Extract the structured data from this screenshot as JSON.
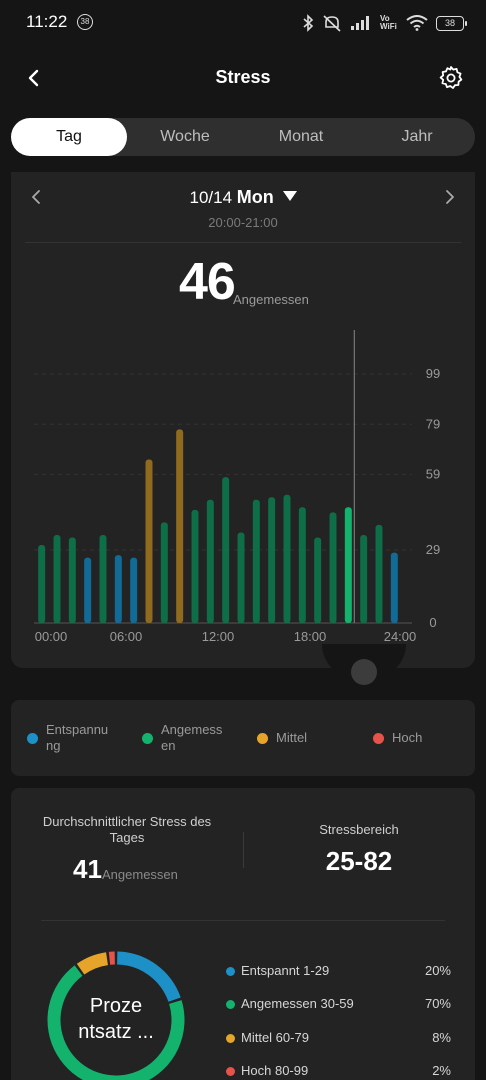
{
  "status": {
    "time": "11:22",
    "notification_badge": "38",
    "battery": "38",
    "network": "Vo WiFi"
  },
  "header": {
    "title": "Stress"
  },
  "tabs": [
    {
      "label": "Tag",
      "active": true
    },
    {
      "label": "Woche",
      "active": false
    },
    {
      "label": "Monat",
      "active": false
    },
    {
      "label": "Jahr",
      "active": false
    }
  ],
  "date": {
    "date": "10/14",
    "day": "Mon",
    "time_range": "20:00-21:00"
  },
  "current": {
    "value": "46",
    "label": "Angemessen"
  },
  "colors": {
    "relaxed": "#1e90c8",
    "normal": "#13b36e",
    "medium": "#e6a52a",
    "high": "#e5534b"
  },
  "chart_data": {
    "type": "bar",
    "xlabel": "",
    "ylabel": "",
    "x_tick_labels": [
      "00:00",
      "06:00",
      "12:00",
      "18:00",
      "24:00"
    ],
    "y_ticks": [
      0,
      29,
      59,
      79,
      99
    ],
    "ylim": [
      0,
      99
    ],
    "grid": true,
    "selected_index": 20,
    "bars": [
      {
        "time": "00:30",
        "value": 31,
        "level": "normal"
      },
      {
        "time": "01:30",
        "value": 35,
        "level": "normal"
      },
      {
        "time": "02:30",
        "value": 34,
        "level": "normal"
      },
      {
        "time": "03:30",
        "value": 26,
        "level": "relaxed"
      },
      {
        "time": "04:30",
        "value": 35,
        "level": "normal"
      },
      {
        "time": "05:30",
        "value": 27,
        "level": "relaxed"
      },
      {
        "time": "06:30",
        "value": 26,
        "level": "relaxed"
      },
      {
        "time": "07:30",
        "value": 65,
        "level": "medium"
      },
      {
        "time": "08:30",
        "value": 40,
        "level": "normal"
      },
      {
        "time": "09:30",
        "value": 77,
        "level": "medium"
      },
      {
        "time": "10:30",
        "value": 45,
        "level": "normal"
      },
      {
        "time": "11:30",
        "value": 49,
        "level": "normal"
      },
      {
        "time": "12:30",
        "value": 58,
        "level": "normal"
      },
      {
        "time": "13:30",
        "value": 36,
        "level": "normal"
      },
      {
        "time": "14:30",
        "value": 49,
        "level": "normal"
      },
      {
        "time": "15:30",
        "value": 50,
        "level": "normal"
      },
      {
        "time": "16:30",
        "value": 51,
        "level": "normal"
      },
      {
        "time": "17:30",
        "value": 46,
        "level": "normal"
      },
      {
        "time": "18:30",
        "value": 34,
        "level": "normal"
      },
      {
        "time": "19:30",
        "value": 44,
        "level": "normal"
      },
      {
        "time": "20:30",
        "value": 46,
        "level": "normal"
      },
      {
        "time": "21:30",
        "value": 35,
        "level": "normal"
      },
      {
        "time": "22:30",
        "value": 39,
        "level": "normal"
      },
      {
        "time": "23:30",
        "value": 28,
        "level": "relaxed"
      }
    ]
  },
  "legend": [
    {
      "label": "Entspannu ng",
      "color": "#1e90c8"
    },
    {
      "label": "Angemess en",
      "color": "#13b36e"
    },
    {
      "label": "Mittel",
      "color": "#e6a52a"
    },
    {
      "label": "Hoch",
      "color": "#e5534b"
    }
  ],
  "summary": {
    "avg_label": "Durchschnittlicher Stress des Tages",
    "avg_value": "41",
    "avg_unit": "Angemessen",
    "range_label": "Stressbereich",
    "range_value": "25-82"
  },
  "distribution": {
    "center_label": "Proze ntsatz ...",
    "items": [
      {
        "label": "Entspannt 1-29",
        "pct": "20%",
        "value": 20,
        "color": "#1e90c8"
      },
      {
        "label": "Angemessen 30-59",
        "pct": "70%",
        "value": 70,
        "color": "#13b36e"
      },
      {
        "label": "Mittel 60-79",
        "pct": "8%",
        "value": 8,
        "color": "#e6a52a"
      },
      {
        "label": "Hoch 80-99",
        "pct": "2%",
        "value": 2,
        "color": "#e5534b"
      }
    ]
  }
}
